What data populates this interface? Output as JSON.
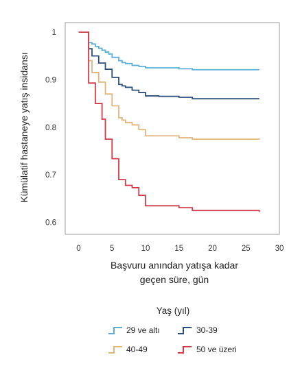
{
  "chart_data": {
    "type": "line",
    "step": true,
    "ylabel": "Kümülatif hastaneye yatış insidansı",
    "xlabel_lines": [
      "Başvuru anından yatışa kadar",
      "geçen süre, gün"
    ],
    "xlim": [
      -2,
      30
    ],
    "ylim": [
      0.575,
      1.02
    ],
    "xticks": [
      0,
      5,
      10,
      15,
      20,
      25,
      30
    ],
    "yticks": [
      0.6,
      0.7,
      0.8,
      0.9,
      1
    ],
    "ytick_labels": [
      "0.6",
      "0.7",
      "0.8",
      "0.9",
      "1"
    ],
    "grid": false,
    "legend_title": "Yaş (yıl)",
    "legend_position": "bottom",
    "series": [
      {
        "name": "29 ve altı",
        "color": "#5aaed8",
        "x": [
          0,
          1,
          1.5,
          2,
          2.5,
          3,
          3.5,
          4,
          4.5,
          5,
          6,
          6.5,
          7,
          8,
          9,
          10,
          15,
          17,
          27
        ],
        "y": [
          1,
          1,
          0.978,
          0.975,
          0.97,
          0.966,
          0.962,
          0.958,
          0.954,
          0.947,
          0.94,
          0.936,
          0.934,
          0.93,
          0.928,
          0.925,
          0.923,
          0.921,
          0.921
        ]
      },
      {
        "name": "30-39",
        "color": "#2c4e7a",
        "x": [
          0,
          1,
          1.5,
          2,
          3,
          4,
          5,
          6,
          6.5,
          7,
          8,
          9,
          10,
          12,
          15,
          17,
          27
        ],
        "y": [
          1,
          1,
          0.965,
          0.95,
          0.935,
          0.922,
          0.905,
          0.89,
          0.887,
          0.884,
          0.878,
          0.873,
          0.866,
          0.865,
          0.863,
          0.86,
          0.86
        ]
      },
      {
        "name": "40-49",
        "color": "#e2b57a",
        "x": [
          0,
          1,
          1.5,
          2,
          3,
          4,
          5,
          6,
          6.5,
          7,
          8,
          9,
          10,
          15,
          17,
          27
        ],
        "y": [
          1,
          1,
          0.94,
          0.915,
          0.895,
          0.87,
          0.845,
          0.82,
          0.815,
          0.81,
          0.805,
          0.795,
          0.782,
          0.778,
          0.775,
          0.774
        ]
      },
      {
        "name": "50 ve üzeri",
        "color": "#d23a4a",
        "x": [
          0,
          1,
          1.5,
          2.5,
          3.5,
          4,
          5,
          6,
          7,
          8,
          9,
          10,
          15,
          17,
          27
        ],
        "y": [
          1,
          1,
          0.893,
          0.85,
          0.817,
          0.775,
          0.734,
          0.69,
          0.678,
          0.673,
          0.657,
          0.635,
          0.631,
          0.625,
          0.622
        ]
      }
    ]
  }
}
